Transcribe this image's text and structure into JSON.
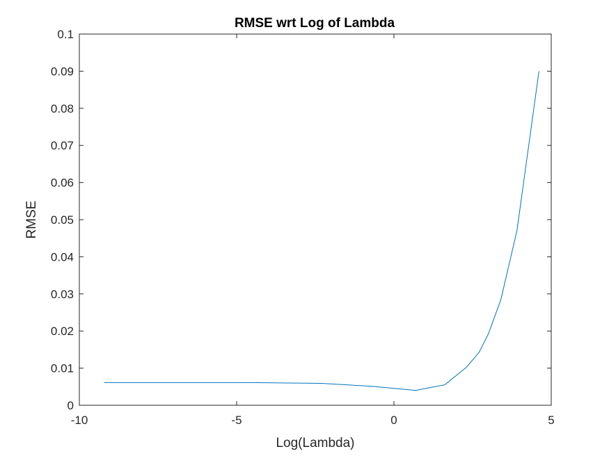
{
  "chart_data": {
    "type": "line",
    "title": "RMSE wrt Log of Lambda",
    "xlabel": "Log(Lambda)",
    "ylabel": "RMSE",
    "xlim": [
      -10,
      5
    ],
    "ylim": [
      0,
      0.1
    ],
    "xticks": [
      -10,
      -5,
      0,
      5
    ],
    "xtick_labels": [
      "-10",
      "-5",
      "0",
      "5"
    ],
    "yticks": [
      0,
      0.01,
      0.02,
      0.03,
      0.04,
      0.05,
      0.06,
      0.07,
      0.08,
      0.09,
      0.1
    ],
    "ytick_labels": [
      "0",
      "0.01",
      "0.02",
      "0.03",
      "0.04",
      "0.05",
      "0.06",
      "0.07",
      "0.08",
      "0.09",
      "0.1"
    ],
    "grid": false,
    "series": [
      {
        "color": "#0072bd",
        "x": [
          -9.21,
          -6.91,
          -4.61,
          -2.3,
          -0.69,
          0.69,
          1.61,
          2.3,
          2.71,
          3.0,
          3.4,
          3.91,
          4.61
        ],
        "y": [
          0.0061,
          0.0061,
          0.0061,
          0.0059,
          0.0051,
          0.004,
          0.0055,
          0.0102,
          0.0143,
          0.0192,
          0.0285,
          0.047,
          0.09
        ]
      }
    ]
  }
}
